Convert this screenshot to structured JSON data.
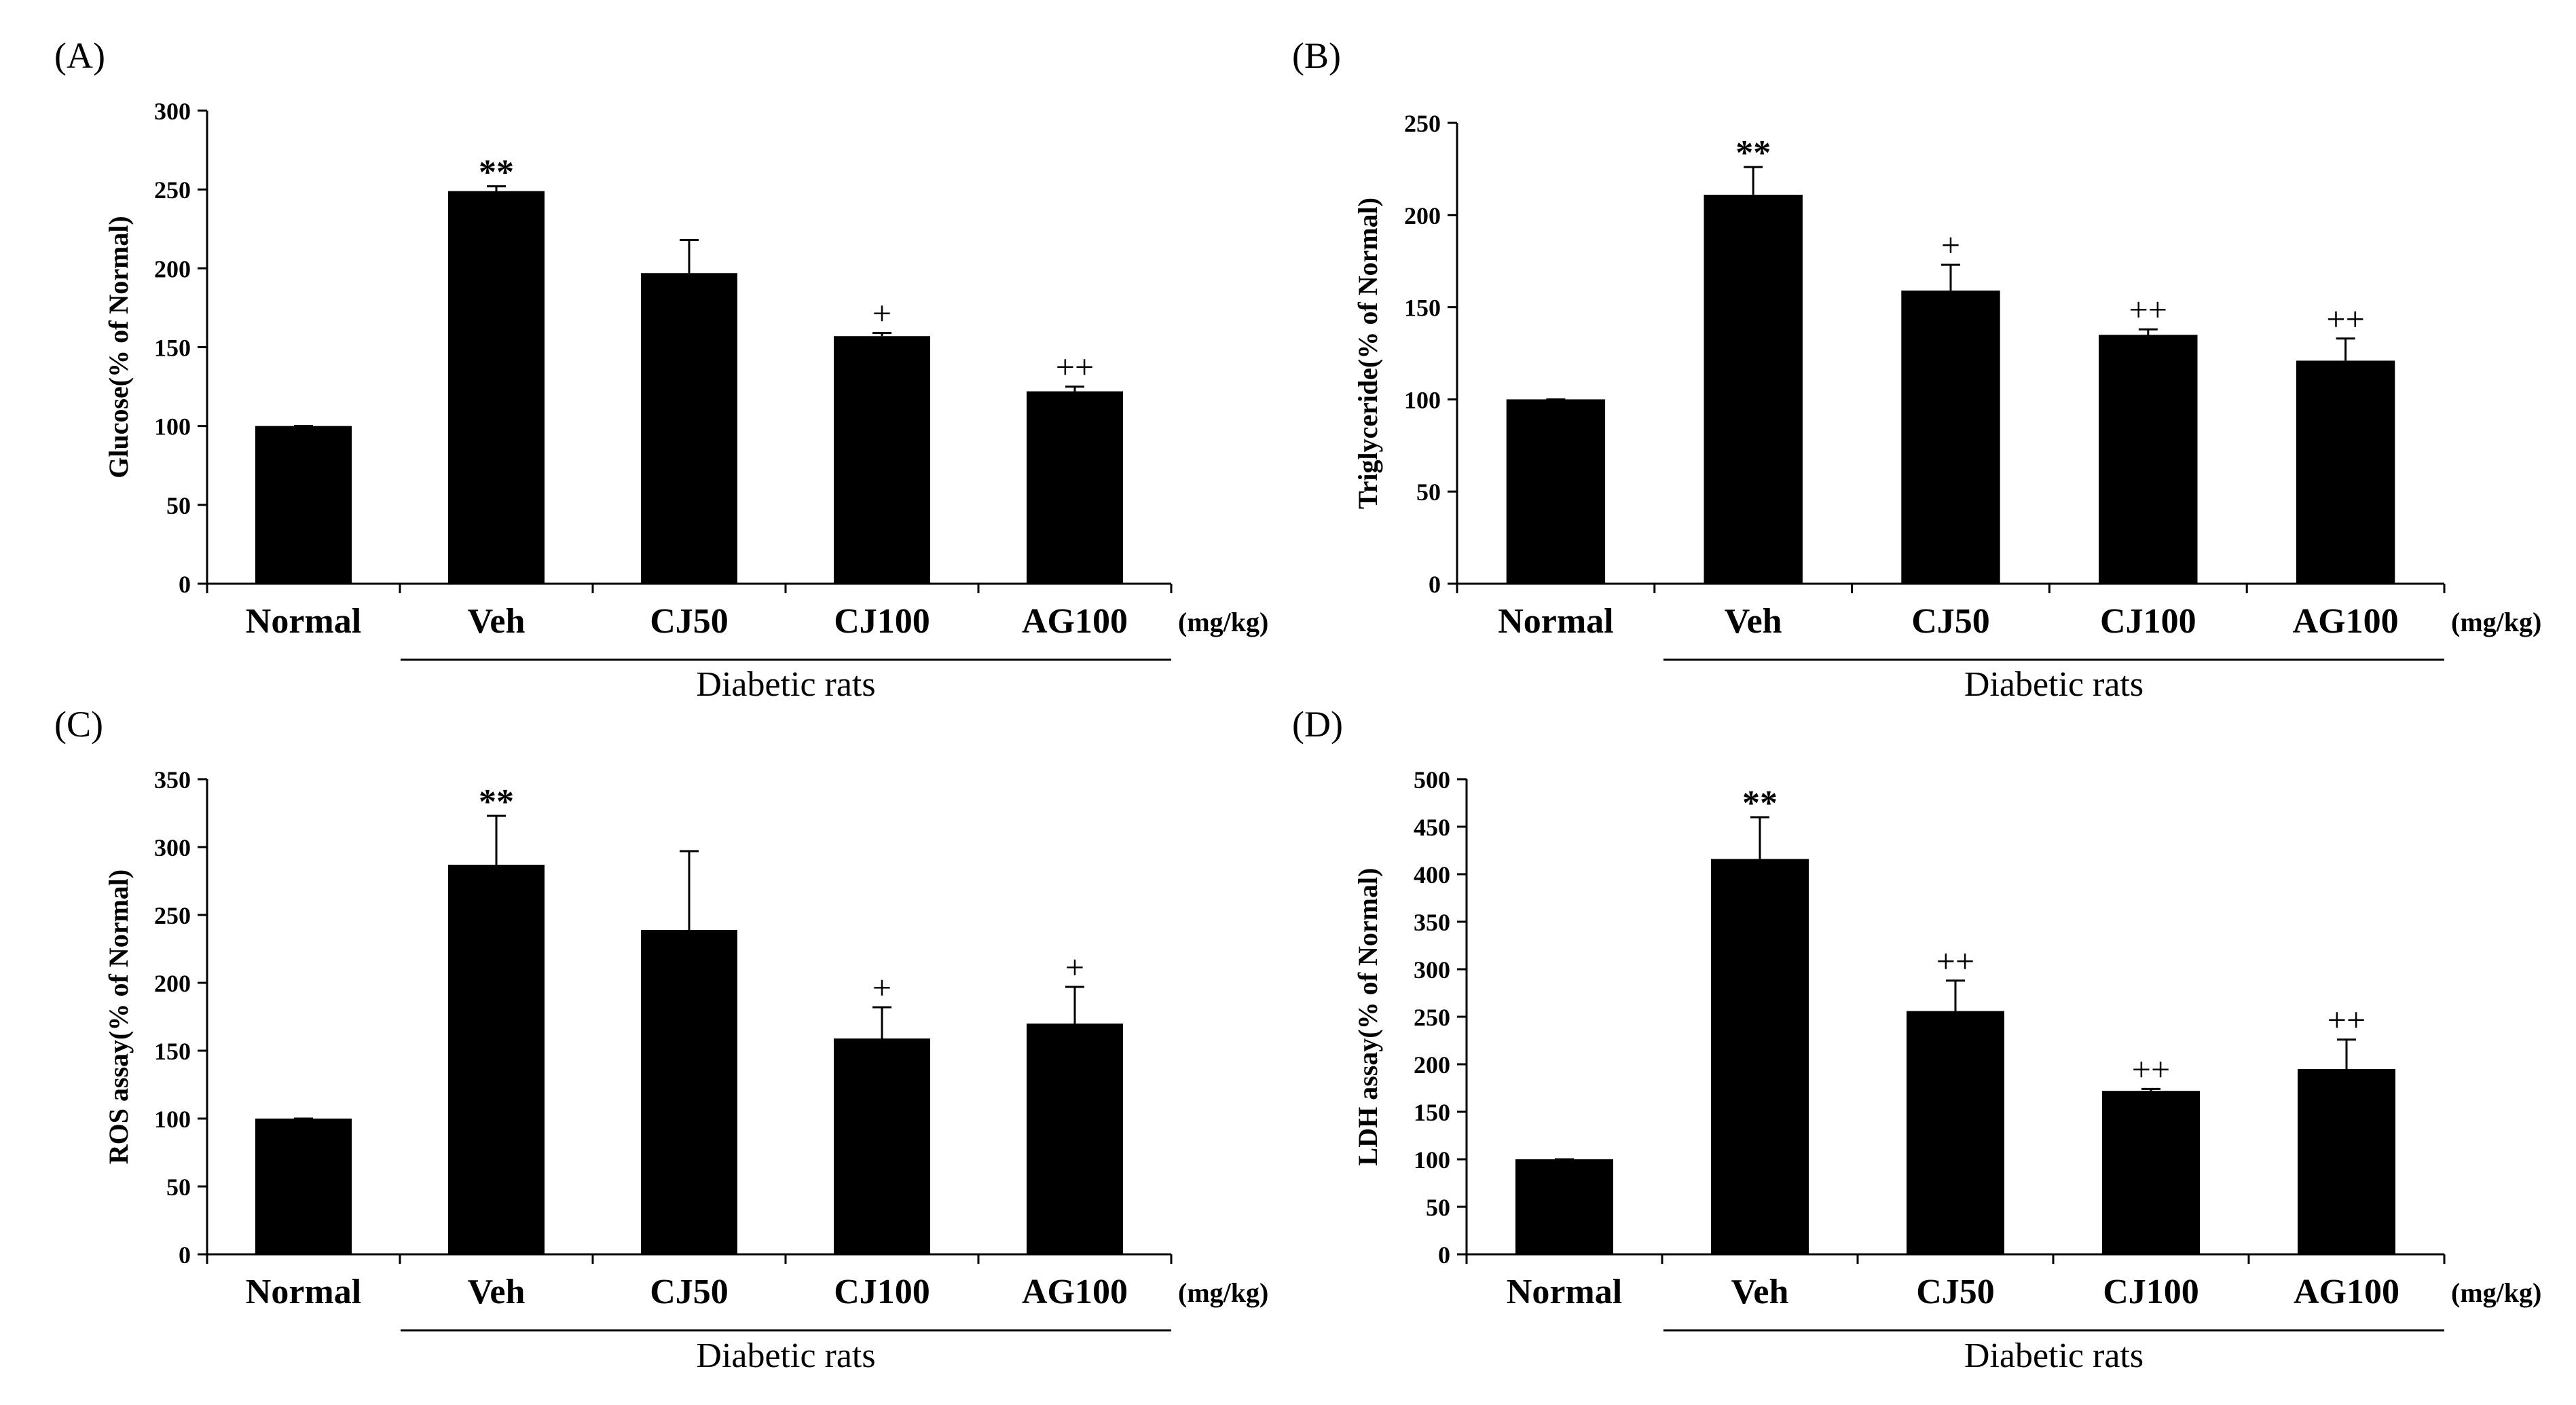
{
  "figure": {
    "group_label": "Diabetic rats",
    "unit_label": "(mg/kg)"
  },
  "chart_data": [
    {
      "id": "A",
      "panel_label": "(A)",
      "type": "bar",
      "categories": [
        "Normal",
        "Veh",
        "CJ50",
        "CJ100",
        "AG100"
      ],
      "values": [
        100,
        249,
        197,
        157,
        122
      ],
      "errors": [
        0,
        3,
        21,
        2,
        3
      ],
      "significance": [
        "",
        "**",
        "",
        "+",
        "++"
      ],
      "ylabel": "Glucose(% of Normal)",
      "ylim": [
        0,
        300
      ],
      "yticks": [
        0,
        50,
        100,
        150,
        200,
        250,
        300
      ],
      "xlabel": "Diabetic rats",
      "unit": "(mg/kg)"
    },
    {
      "id": "B",
      "panel_label": "(B)",
      "type": "bar",
      "categories": [
        "Normal",
        "Veh",
        "CJ50",
        "CJ100",
        "AG100"
      ],
      "values": [
        100,
        211,
        159,
        135,
        121
      ],
      "errors": [
        0,
        15,
        14,
        3,
        12
      ],
      "significance": [
        "",
        "**",
        "+",
        "++",
        "++"
      ],
      "ylabel": "Triglyceride(% of Normal)",
      "ylim": [
        0,
        250
      ],
      "yticks": [
        0,
        50,
        100,
        150,
        200,
        250
      ],
      "xlabel": "Diabetic rats",
      "unit": "(mg/kg)"
    },
    {
      "id": "C",
      "panel_label": "(C)",
      "type": "bar",
      "categories": [
        "Normal",
        "Veh",
        "CJ50",
        "CJ100",
        "AG100"
      ],
      "values": [
        100,
        287,
        239,
        159,
        170
      ],
      "errors": [
        0,
        36,
        58,
        23,
        27
      ],
      "significance": [
        "",
        "**",
        "",
        "+",
        "+"
      ],
      "ylabel": "ROS assay(% of Normal)",
      "ylim": [
        0,
        350
      ],
      "yticks": [
        0,
        50,
        100,
        150,
        200,
        250,
        300,
        350
      ],
      "xlabel": "Diabetic rats",
      "unit": "(mg/kg)"
    },
    {
      "id": "D",
      "panel_label": "(D)",
      "type": "bar",
      "categories": [
        "Normal",
        "Veh",
        "CJ50",
        "CJ100",
        "AG100"
      ],
      "values": [
        100,
        416,
        256,
        172,
        195
      ],
      "errors": [
        0,
        44,
        32,
        2,
        31
      ],
      "significance": [
        "",
        "**",
        "++",
        "++",
        "++"
      ],
      "ylabel": "LDH assay(% of Normal)",
      "ylim": [
        0,
        500
      ],
      "yticks": [
        0,
        50,
        100,
        150,
        200,
        250,
        300,
        350,
        400,
        450,
        500
      ],
      "xlabel": "Diabetic rats",
      "unit": "(mg/kg)"
    }
  ]
}
